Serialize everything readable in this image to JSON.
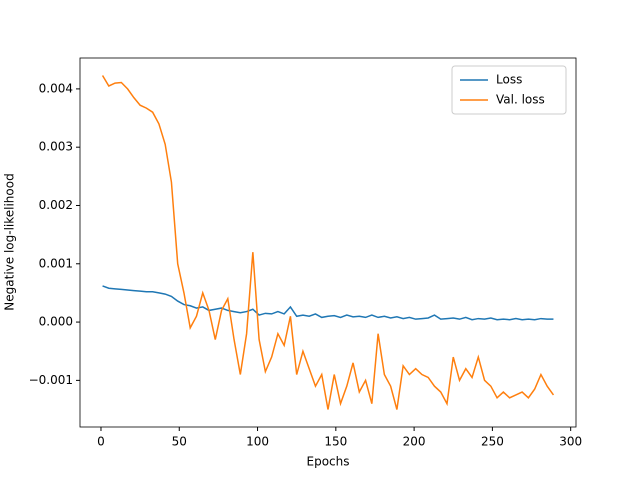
{
  "chart_data": {
    "type": "line",
    "xlabel": "Epochs",
    "ylabel": "Negative log-likelihood",
    "x": [
      1,
      5,
      9,
      13,
      17,
      21,
      25,
      29,
      33,
      37,
      41,
      45,
      49,
      53,
      57,
      61,
      65,
      69,
      73,
      77,
      81,
      85,
      89,
      93,
      97,
      101,
      105,
      109,
      113,
      117,
      121,
      125,
      129,
      133,
      137,
      141,
      145,
      149,
      153,
      157,
      161,
      165,
      169,
      173,
      177,
      181,
      185,
      189,
      193,
      197,
      201,
      205,
      209,
      213,
      217,
      221,
      225,
      229,
      233,
      237,
      241,
      245,
      249,
      253,
      257,
      261,
      265,
      269,
      273,
      277,
      281,
      285,
      289
    ],
    "series": [
      {
        "name": "Loss",
        "color": "#1f77b4",
        "values": [
          0.00062,
          0.00058,
          0.00057,
          0.00056,
          0.00055,
          0.00054,
          0.00053,
          0.00052,
          0.00052,
          0.0005,
          0.00048,
          0.00044,
          0.00036,
          0.0003,
          0.00028,
          0.00024,
          0.00026,
          0.0002,
          0.00022,
          0.00024,
          0.0002,
          0.00018,
          0.00016,
          0.00018,
          0.00022,
          0.00012,
          0.00015,
          0.00014,
          0.00018,
          0.00014,
          0.00026,
          0.0001,
          0.00012,
          0.0001,
          0.00014,
          8e-05,
          0.0001,
          0.00011,
          8e-05,
          0.00012,
          9e-05,
          0.0001,
          8e-05,
          0.00012,
          8e-05,
          0.0001,
          7e-05,
          9e-05,
          6e-05,
          8e-05,
          5e-05,
          6e-05,
          7e-05,
          0.00012,
          5e-05,
          6e-05,
          7e-05,
          5e-05,
          8e-05,
          4e-05,
          6e-05,
          5e-05,
          7e-05,
          4e-05,
          5e-05,
          4e-05,
          6e-05,
          4e-05,
          5e-05,
          4e-05,
          6e-05,
          5e-05,
          5e-05
        ]
      },
      {
        "name": "Val. loss",
        "color": "#ff7f0e",
        "values": [
          0.00423,
          0.00405,
          0.0041,
          0.00411,
          0.004,
          0.00385,
          0.00372,
          0.00367,
          0.0036,
          0.0034,
          0.00305,
          0.0024,
          0.001,
          0.0005,
          -0.0001,
          0.0001,
          0.0005,
          0.0002,
          -0.0003,
          0.0002,
          0.0004,
          -0.0003,
          -0.0009,
          -0.0002,
          0.0012,
          -0.0003,
          -0.00085,
          -0.0006,
          -0.0002,
          -0.0004,
          0.0001,
          -0.0009,
          -0.0005,
          -0.0008,
          -0.0011,
          -0.0009,
          -0.0015,
          -0.0009,
          -0.0014,
          -0.0011,
          -0.0007,
          -0.0012,
          -0.001,
          -0.0014,
          -0.0002,
          -0.0009,
          -0.0011,
          -0.0015,
          -0.00075,
          -0.0009,
          -0.0008,
          -0.0009,
          -0.00095,
          -0.0011,
          -0.0012,
          -0.0014,
          -0.0006,
          -0.001,
          -0.0008,
          -0.00095,
          -0.0006,
          -0.001,
          -0.0011,
          -0.0013,
          -0.0012,
          -0.0013,
          -0.00125,
          -0.0012,
          -0.0013,
          -0.00115,
          -0.0009,
          -0.0011,
          -0.00125
        ]
      }
    ],
    "xlim": [
      -13.4,
      303.4
    ],
    "xticks": [
      0,
      50,
      100,
      150,
      200,
      250,
      300
    ],
    "ylim": [
      -0.0018,
      0.00453
    ],
    "yticks": [
      {
        "value": -0.001,
        "label": "−0.001"
      },
      {
        "value": 0,
        "label": "0.000"
      },
      {
        "value": 0.001,
        "label": "0.001"
      },
      {
        "value": 0.002,
        "label": "0.002"
      },
      {
        "value": 0.003,
        "label": "0.003"
      },
      {
        "value": 0.004,
        "label": "0.004"
      }
    ],
    "legend": "upper right"
  }
}
